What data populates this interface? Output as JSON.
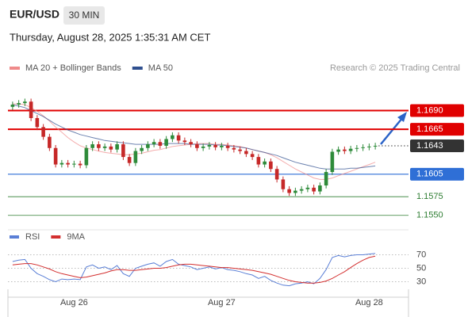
{
  "header": {
    "symbol": "EUR/USD",
    "interval": "30 MIN",
    "timestamp": "Thursday, August 28, 2025 1:35:31 AM CET"
  },
  "chart_data": [
    {
      "type": "candlestick",
      "credit": "Research © 2025 Trading Central",
      "up_color": "#2e8b3a",
      "down_color": "#c62828",
      "categories": [
        null,
        null,
        null,
        null,
        null,
        null,
        null,
        null,
        null,
        null,
        "Aug 26",
        null,
        null,
        null,
        null,
        null,
        null,
        null,
        null,
        null,
        null,
        null,
        null,
        null,
        null,
        null,
        null,
        null,
        null,
        null,
        null,
        null,
        null,
        null,
        "Aug 27",
        null,
        null,
        null,
        null,
        null,
        null,
        null,
        null,
        null,
        null,
        null,
        null,
        null,
        null,
        null,
        null,
        null,
        null,
        null,
        null,
        null,
        null,
        null,
        "Aug 28",
        null
      ],
      "open": [
        1.1695,
        1.1698,
        1.17,
        1.1702,
        1.168,
        1.1668,
        1.1655,
        1.164,
        1.1618,
        1.162,
        1.1618,
        1.1619,
        1.1617,
        1.164,
        1.1645,
        1.164,
        1.1642,
        1.1638,
        1.1645,
        1.1628,
        1.162,
        1.1636,
        1.164,
        1.1645,
        1.1648,
        1.1643,
        1.1652,
        1.1657,
        1.165,
        1.1648,
        1.1645,
        1.164,
        1.1642,
        1.1644,
        1.1641,
        1.1643,
        1.164,
        1.1638,
        1.1636,
        1.1632,
        1.1628,
        1.1618,
        1.1622,
        1.1612,
        1.1598,
        1.1585,
        1.158,
        1.1583,
        1.1585,
        1.1587,
        1.1582,
        1.159,
        1.1608,
        1.1635,
        1.1638,
        1.1636,
        1.1639,
        1.164,
        1.1641,
        1.1642
      ],
      "high": [
        1.1702,
        1.1704,
        1.1706,
        1.1706,
        1.1684,
        1.1672,
        1.1659,
        1.1644,
        1.1624,
        1.1624,
        1.1623,
        1.1623,
        1.1644,
        1.1649,
        1.1649,
        1.1646,
        1.1646,
        1.1649,
        1.1649,
        1.1632,
        1.164,
        1.1644,
        1.1649,
        1.1652,
        1.1652,
        1.1656,
        1.1661,
        1.1661,
        1.1654,
        1.1652,
        1.1649,
        1.1646,
        1.1648,
        1.1648,
        1.1647,
        1.1647,
        1.1644,
        1.1642,
        1.164,
        1.1636,
        1.1632,
        1.1626,
        1.1626,
        1.1616,
        1.1602,
        1.1589,
        1.1587,
        1.1589,
        1.1591,
        1.1591,
        1.1594,
        1.1612,
        1.1639,
        1.1642,
        1.1642,
        1.1643,
        1.1644,
        1.1645,
        1.1646,
        1.1647
      ],
      "low": [
        1.1691,
        1.1694,
        1.1696,
        1.1676,
        1.1664,
        1.1651,
        1.1636,
        1.1614,
        1.1614,
        1.1614,
        1.1614,
        1.1613,
        1.1613,
        1.1636,
        1.1636,
        1.1636,
        1.1634,
        1.1634,
        1.1624,
        1.1616,
        1.1616,
        1.1632,
        1.1636,
        1.1641,
        1.1639,
        1.1639,
        1.1648,
        1.1646,
        1.1644,
        1.1641,
        1.1636,
        1.1636,
        1.1638,
        1.1637,
        1.1637,
        1.1636,
        1.1634,
        1.1632,
        1.1628,
        1.1624,
        1.1614,
        1.1614,
        1.1608,
        1.1594,
        1.1581,
        1.1576,
        1.1576,
        1.1579,
        1.1581,
        1.1578,
        1.1578,
        1.1586,
        1.1604,
        1.1631,
        1.1632,
        1.1632,
        1.1635,
        1.1636,
        1.1637,
        1.1638
      ],
      "close": [
        1.1698,
        1.17,
        1.1702,
        1.168,
        1.1668,
        1.1655,
        1.164,
        1.1618,
        1.162,
        1.1618,
        1.1619,
        1.1617,
        1.164,
        1.1645,
        1.164,
        1.1642,
        1.1638,
        1.1645,
        1.1628,
        1.162,
        1.1636,
        1.164,
        1.1645,
        1.1648,
        1.1643,
        1.1652,
        1.1657,
        1.165,
        1.1648,
        1.1645,
        1.164,
        1.1642,
        1.1644,
        1.1641,
        1.1643,
        1.164,
        1.1638,
        1.1636,
        1.1632,
        1.1628,
        1.1618,
        1.1622,
        1.1612,
        1.1598,
        1.1585,
        1.158,
        1.1583,
        1.1585,
        1.1587,
        1.1582,
        1.159,
        1.1608,
        1.1635,
        1.1638,
        1.1636,
        1.1639,
        1.164,
        1.1641,
        1.1642,
        1.1643
      ],
      "series": [
        {
          "name": "MA 20 + Bollinger Bands",
          "color": "#ef8a8a",
          "values": [
            1.1699,
            1.1699,
            1.1698,
            1.1694,
            1.1689,
            1.1683,
            1.1676,
            1.1668,
            1.1661,
            1.1654,
            1.1648,
            1.1643,
            1.164,
            1.1638,
            1.1636,
            1.1634,
            1.1633,
            1.1632,
            1.1631,
            1.1631,
            1.1632,
            1.1633,
            1.1635,
            1.1637,
            1.1638,
            1.164,
            1.1642,
            1.1643,
            1.1644,
            1.1645,
            1.1646,
            1.1646,
            1.1646,
            1.1645,
            1.1645,
            1.1644,
            1.1643,
            1.1642,
            1.164,
            1.1638,
            1.1636,
            1.1634,
            1.1631,
            1.1627,
            1.1622,
            1.1617,
            1.1612,
            1.1608,
            1.1604,
            1.16,
            1.1598,
            1.1598,
            1.16,
            1.1603,
            1.1606,
            1.1609,
            1.1612,
            1.1615,
            1.1618,
            1.1621
          ]
        },
        {
          "name": "MA 50",
          "color": "#2f4f8f",
          "values": [
            1.1698,
            1.1696,
            1.1694,
            1.169,
            1.1686,
            1.1682,
            1.1677,
            1.1672,
            1.1668,
            1.1664,
            1.1661,
            1.1658,
            1.1656,
            1.1654,
            1.1652,
            1.165,
            1.1649,
            1.1648,
            1.1647,
            1.1646,
            1.1645,
            1.1645,
            1.1645,
            1.1645,
            1.1645,
            1.1646,
            1.1646,
            1.1646,
            1.1646,
            1.1645,
            1.1645,
            1.1645,
            1.1645,
            1.1644,
            1.1644,
            1.1643,
            1.1642,
            1.1641,
            1.164,
            1.1638,
            1.1636,
            1.1634,
            1.1632,
            1.163,
            1.1627,
            1.1624,
            1.1621,
            1.1619,
            1.1617,
            1.1615,
            1.1613,
            1.1612,
            1.1612,
            1.1612,
            1.1612,
            1.1613,
            1.1613,
            1.1614,
            1.1615,
            1.1616
          ]
        }
      ],
      "levels": [
        {
          "value": 1.169,
          "label": "1.1690",
          "color": "#e00000",
          "style": "bold",
          "box": true
        },
        {
          "value": 1.1665,
          "color": "#e00000",
          "style": "bold",
          "box": true
        },
        {
          "value": 1.1643,
          "color": "#333333",
          "style": "dotted",
          "box": true
        },
        {
          "value": 1.1605,
          "color": "#2f6fd6",
          "style": "solid",
          "box": true
        },
        {
          "value": 1.1575,
          "color": "#2e7d32",
          "style": "thin",
          "box": false
        },
        {
          "value": 1.155,
          "label": "1.1550",
          "color": "#2e7d32",
          "style": "thin",
          "box": false
        }
      ],
      "ylim": [
        1.1536,
        1.1716
      ]
    },
    {
      "type": "line",
      "series": [
        {
          "name": "RSI",
          "color": "#5a7fd6",
          "values": [
            60,
            62,
            63,
            50,
            42,
            38,
            33,
            30,
            34,
            33,
            34,
            33,
            52,
            55,
            50,
            52,
            48,
            54,
            42,
            38,
            50,
            53,
            56,
            58,
            53,
            60,
            63,
            56,
            54,
            52,
            48,
            50,
            52,
            49,
            51,
            48,
            47,
            45,
            42,
            40,
            35,
            38,
            32,
            28,
            25,
            24,
            27,
            28,
            30,
            27,
            35,
            48,
            66,
            69,
            67,
            69,
            70,
            70,
            71,
            72
          ]
        },
        {
          "name": "9MA",
          "color": "#d32f2f",
          "values": [
            55,
            56,
            57,
            57,
            55,
            52,
            49,
            45,
            42,
            40,
            38,
            36,
            37,
            39,
            41,
            43,
            46,
            48,
            48,
            47,
            47,
            48,
            49,
            50,
            50,
            51,
            53,
            55,
            56,
            56,
            55,
            54,
            53,
            52,
            51,
            51,
            50,
            49,
            48,
            47,
            45,
            43,
            41,
            38,
            35,
            32,
            30,
            29,
            28,
            28,
            29,
            31,
            35,
            40,
            45,
            51,
            57,
            62,
            66,
            68
          ]
        }
      ],
      "ylim": [
        20,
        80
      ],
      "yticks": [
        70,
        50,
        30
      ],
      "grid": true
    }
  ]
}
